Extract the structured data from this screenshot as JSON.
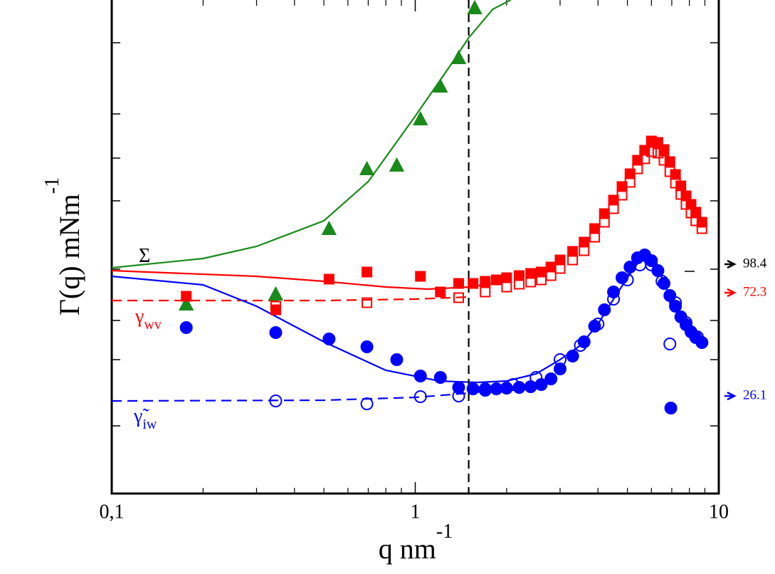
{
  "chart_data": {
    "type": "scatter",
    "xlabel": {
      "text": "q nm",
      "sup": "-1"
    },
    "ylabel": {
      "text": "Γ(q) mNm",
      "sup": "-1"
    },
    "xscale": "log",
    "xlim": [
      0.1,
      10
    ],
    "xticks": [
      {
        "value": 0.1,
        "label": "0,1"
      },
      1,
      10
    ],
    "ylim": [
      0,
      693
    ],
    "yticks": [
      95,
      188,
      243,
      315,
      411,
      471,
      533,
      633
    ],
    "vline": 1.5,
    "series": [
      {
        "kind": "triangle",
        "fill": true,
        "color": "#1a8a1a",
        "x": [
          0.176,
          0.347,
          0.52,
          0.693,
          0.869,
          1.04,
          1.21,
          1.39,
          1.57
        ],
        "values": [
          265,
          279,
          371,
          455,
          460,
          525,
          571,
          611,
          681
        ]
      },
      {
        "kind": "square",
        "fill": true,
        "color": "#ff0000",
        "x": [
          0.176,
          0.347,
          0.52,
          0.693,
          1.04,
          1.21,
          1.39,
          1.55,
          1.7,
          1.85,
          2.0,
          2.2,
          2.4,
          2.6,
          2.8,
          3.0,
          3.3,
          3.6,
          3.9,
          4.2,
          4.5,
          4.8,
          5.1,
          5.4,
          5.7,
          6.0,
          6.3,
          6.6,
          6.9,
          7.2,
          7.5,
          7.8,
          8.1,
          8.4,
          8.8
        ],
        "values": [
          277,
          258,
          301,
          311,
          305,
          283,
          295,
          295,
          298,
          300,
          303,
          306,
          309,
          311,
          318,
          328,
          340,
          353,
          372,
          393,
          412,
          431,
          449,
          468,
          482,
          495,
          493,
          483,
          466,
          448,
          432,
          418,
          406,
          395,
          381
        ]
      },
      {
        "kind": "square",
        "fill": false,
        "color": "#ff0000",
        "x": [
          0.347,
          0.693,
          1.39,
          1.7,
          2.0,
          2.2,
          2.4,
          2.6,
          2.8,
          3.0,
          3.3,
          3.6,
          3.9,
          4.2,
          4.5,
          4.8,
          5.1,
          5.4,
          5.7,
          6.0,
          6.3,
          6.6,
          6.9,
          7.2,
          7.5,
          7.8,
          8.1,
          8.4,
          8.8
        ],
        "values": [
          263,
          268,
          275,
          283,
          290,
          294,
          297,
          300,
          306,
          316,
          328,
          341,
          360,
          381,
          400,
          419,
          437,
          456,
          470,
          480,
          478,
          468,
          452,
          436,
          420,
          406,
          394,
          383,
          372
        ]
      },
      {
        "kind": "circle",
        "fill": true,
        "color": "#0000ff",
        "x": [
          0.176,
          0.347,
          0.52,
          0.693,
          0.869,
          1.04,
          1.21,
          1.39,
          1.55,
          1.7,
          1.85,
          2.0,
          2.2,
          2.4,
          2.6,
          2.8,
          3.0,
          3.3,
          3.6,
          3.9,
          4.2,
          4.5,
          4.8,
          5.1,
          5.4,
          5.7,
          6.0,
          6.3,
          6.6,
          6.9,
          7.2,
          7.5,
          7.8,
          8.1,
          8.4,
          8.8,
          6.95
        ],
        "values": [
          233,
          226,
          217,
          206,
          188,
          165,
          163,
          149,
          147,
          147,
          147,
          148,
          149,
          150,
          153,
          161,
          175,
          193,
          213,
          235,
          258,
          283,
          303,
          318,
          331,
          335,
          327,
          313,
          295,
          278,
          263,
          248,
          237,
          227,
          219,
          212,
          120
        ]
      },
      {
        "kind": "circle",
        "fill": false,
        "color": "#0000ff",
        "x": [
          0.347,
          0.693,
          1.04,
          1.39,
          1.7,
          2.1,
          2.5,
          3.0,
          3.5,
          4.0,
          4.5,
          5.0,
          5.5,
          6.0,
          6.5,
          6.9,
          7.2,
          7.8,
          8.5
        ],
        "values": [
          130,
          126,
          136,
          137,
          145,
          153,
          163,
          188,
          208,
          238,
          273,
          300,
          321,
          321,
          298,
          210,
          268,
          240,
          220
        ]
      }
    ],
    "lines": [
      {
        "color": "#1a8a1a",
        "dash": false,
        "x": [
          0.1,
          0.2,
          0.3,
          0.5,
          0.7,
          1.0,
          1.3,
          1.5,
          1.8,
          2.06
        ],
        "values": [
          317,
          330,
          347,
          383,
          438,
          530,
          600,
          640,
          680,
          693
        ]
      },
      {
        "color": "#ff0000",
        "dash": false,
        "x": [
          0.1,
          0.3,
          0.5,
          0.8,
          1.1,
          1.5,
          1.8
        ],
        "values": [
          313,
          305,
          298,
          290,
          287,
          290,
          295
        ]
      },
      {
        "color": "#ff0000",
        "dash": true,
        "x": [
          0.1,
          0.5,
          1.0,
          1.5
        ],
        "values": [
          271,
          271,
          273,
          276
        ]
      },
      {
        "color": "#0000ff",
        "dash": false,
        "x": [
          0.1,
          0.2,
          0.3,
          0.5,
          0.8,
          1.2,
          1.6,
          2.0,
          2.5,
          3.0,
          3.5,
          4.0,
          4.5,
          5.0,
          5.5,
          5.8,
          6.2,
          6.8,
          7.5,
          8.5,
          8.8
        ],
        "values": [
          305,
          293,
          263,
          213,
          173,
          158,
          156,
          158,
          168,
          188,
          208,
          238,
          273,
          303,
          328,
          335,
          323,
          283,
          248,
          218,
          213
        ]
      },
      {
        "color": "#0000ff",
        "dash": true,
        "x": [
          0.1,
          0.5,
          1.0,
          1.5,
          1.8
        ],
        "values": [
          130,
          131,
          135,
          141,
          145
        ]
      }
    ],
    "annotations": [
      {
        "text": "Σ",
        "sub": null,
        "color": "#000000"
      },
      {
        "text": "γ",
        "sub": "wv",
        "color": "#ff0000"
      },
      {
        "text": "γ̃",
        "sub": "iw",
        "color": "#0000ff"
      }
    ],
    "side_labels": [
      {
        "text": "98.4",
        "color": "#000000"
      },
      {
        "text": "72.3",
        "color": "#ff0000"
      },
      {
        "text": "26.1",
        "color": "#0000ff"
      }
    ]
  }
}
